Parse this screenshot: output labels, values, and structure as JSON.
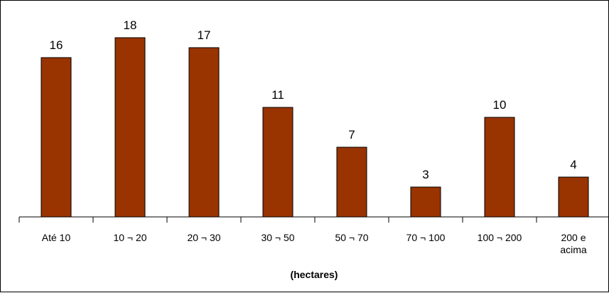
{
  "chart_data": {
    "type": "bar",
    "title": "",
    "ylabel": "",
    "xlabel": "(hectares)",
    "categories": [
      "Até 10",
      "10 ¬ 20",
      "20 ¬ 30",
      "30 ¬ 50",
      "50 ¬ 70",
      "70 ¬ 100",
      "100 ¬ 200",
      "200 e acima"
    ],
    "values": [
      16,
      18,
      17,
      11,
      7,
      3,
      10,
      4
    ],
    "data_labels": [
      "16",
      "18",
      "17",
      "11",
      "7",
      "3",
      "10",
      "4"
    ],
    "ylim": [
      0,
      18
    ],
    "grid": false,
    "legend": "none",
    "bar_color": "#993300",
    "bar_stroke": "#000000"
  }
}
